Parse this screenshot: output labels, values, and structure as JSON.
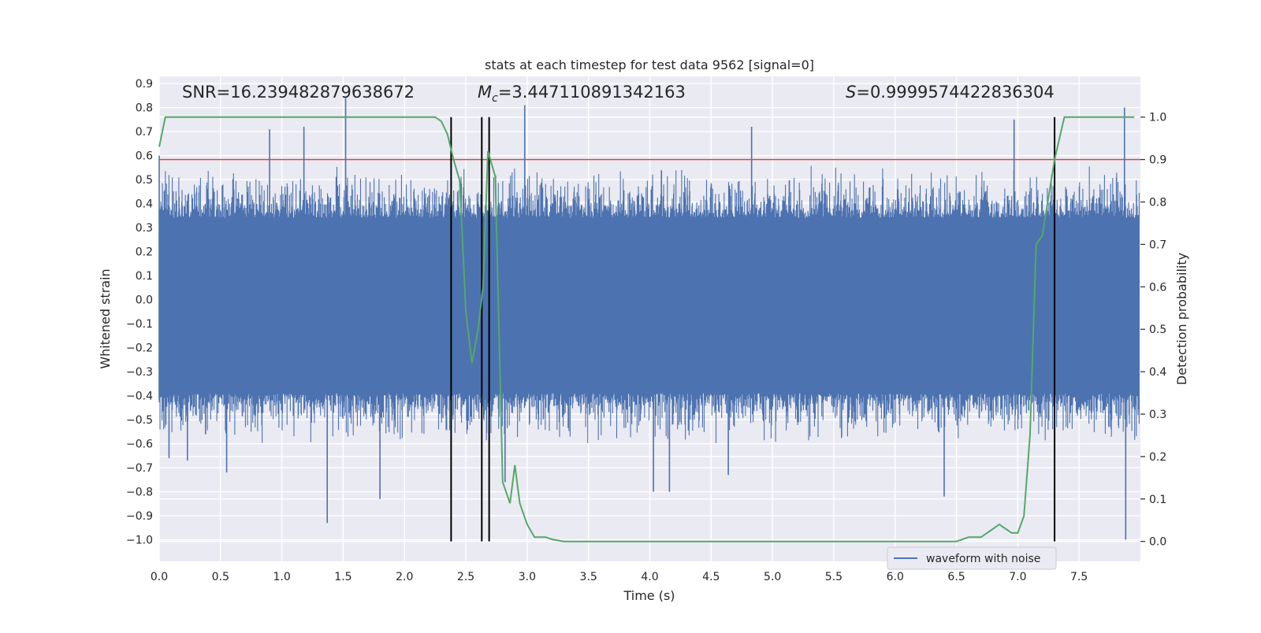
{
  "chart_data": {
    "type": "line",
    "title": "stats at each timestep for test data 9562 [signal=0]",
    "xlabel": "Time (s)",
    "ylabel": "Whitened strain",
    "y2label": "Detection probability",
    "xlim": [
      0.0,
      8.0
    ],
    "ylim": [
      -1.09,
      0.93
    ],
    "y2lim": [
      -0.047,
      1.096
    ],
    "x_ticks": [
      0.0,
      0.5,
      1.0,
      1.5,
      2.0,
      2.5,
      3.0,
      3.5,
      4.0,
      4.5,
      5.0,
      5.5,
      6.0,
      6.5,
      7.0,
      7.5
    ],
    "x_tick_labels": [
      "0.0",
      "0.5",
      "1.0",
      "1.5",
      "2.0",
      "2.5",
      "3.0",
      "3.5",
      "4.0",
      "4.5",
      "5.0",
      "5.5",
      "6.0",
      "6.5",
      "7.0",
      "7.5"
    ],
    "y_ticks": [
      0.9,
      0.8,
      0.7,
      0.6,
      0.5,
      0.4,
      0.3,
      0.2,
      0.1,
      0.0,
      -0.1,
      -0.2,
      -0.3,
      -0.4,
      -0.5,
      -0.6,
      -0.7,
      -0.8,
      -0.9,
      -1.0
    ],
    "y_tick_labels": [
      "0.9",
      "0.8",
      "0.7",
      "0.6",
      "0.5",
      "0.4",
      "0.3",
      "0.2",
      "0.1",
      "0.0",
      "−0.1",
      "−0.2",
      "−0.3",
      "−0.4",
      "−0.5",
      "−0.6",
      "−0.7",
      "−0.8",
      "−0.9",
      "−1.0"
    ],
    "y2_ticks": [
      1.0,
      0.9,
      0.8,
      0.7,
      0.6,
      0.5,
      0.4,
      0.3,
      0.2,
      0.1,
      0.0
    ],
    "y2_tick_labels": [
      "1.0",
      "0.9",
      "0.8",
      "0.7",
      "0.6",
      "0.5",
      "0.4",
      "0.3",
      "0.2",
      "0.1",
      "0.0"
    ],
    "annotations": {
      "snr": "SNR=16.239482879638672",
      "mc_prefix": "M",
      "mc_sub": "c",
      "mc_value": "=3.447110891342163",
      "s_prefix": "S",
      "s_value": "=0.9999574422836304"
    },
    "threshold_y2": 0.9,
    "vertical_lines_x": [
      2.38,
      2.63,
      2.69,
      7.3
    ],
    "vertical_lines_y2_range": [
      0.0,
      1.0
    ],
    "legend": {
      "label": "waveform with noise",
      "placement": "lower-right"
    },
    "colors": {
      "waveform": "#4c72b0",
      "probability": "#55a868",
      "threshold": "#c44e52",
      "markers": "#000000",
      "plot_bg": "#eaeaf2",
      "grid": "#ffffff"
    },
    "series": [
      {
        "name": "waveform with noise",
        "axis": "left",
        "style": "dense-noise",
        "envelope_upper_typical": 0.32,
        "envelope_lower_typical": -0.37,
        "spikes": [
          {
            "x": 0.0,
            "y": 0.6
          },
          {
            "x": 0.9,
            "y": 0.71
          },
          {
            "x": 1.18,
            "y": 0.72
          },
          {
            "x": 1.52,
            "y": 0.84
          },
          {
            "x": 2.98,
            "y": 0.81
          },
          {
            "x": 4.83,
            "y": 0.72
          },
          {
            "x": 6.97,
            "y": 0.75
          },
          {
            "x": 7.87,
            "y": 0.8
          },
          {
            "x": 0.0,
            "y": -0.41
          },
          {
            "x": 0.08,
            "y": -0.66
          },
          {
            "x": 0.23,
            "y": -0.67
          },
          {
            "x": 0.55,
            "y": -0.72
          },
          {
            "x": 1.37,
            "y": -0.93
          },
          {
            "x": 1.8,
            "y": -0.83
          },
          {
            "x": 2.82,
            "y": -0.76
          },
          {
            "x": 4.03,
            "y": -0.8
          },
          {
            "x": 4.16,
            "y": -0.8
          },
          {
            "x": 4.64,
            "y": -0.73
          },
          {
            "x": 6.4,
            "y": -0.82
          },
          {
            "x": 7.88,
            "y": -1.0
          }
        ]
      },
      {
        "name": "detection probability",
        "axis": "right",
        "x": [
          0.0,
          0.05,
          0.2,
          0.5,
          1.0,
          1.5,
          2.0,
          2.25,
          2.3,
          2.35,
          2.4,
          2.45,
          2.5,
          2.55,
          2.6,
          2.64,
          2.68,
          2.74,
          2.8,
          2.86,
          2.9,
          2.94,
          3.0,
          3.06,
          3.15,
          3.2,
          3.3,
          3.5,
          3.8,
          4.0,
          4.5,
          5.0,
          5.5,
          6.0,
          6.5,
          6.6,
          6.7,
          6.8,
          6.85,
          6.9,
          6.95,
          7.0,
          7.05,
          7.1,
          7.15,
          7.2,
          7.3,
          7.38,
          7.45,
          7.6,
          7.8,
          7.95
        ],
        "y": [
          0.93,
          1.0,
          1.0,
          1.0,
          1.0,
          1.0,
          1.0,
          1.0,
          0.99,
          0.96,
          0.9,
          0.85,
          0.54,
          0.42,
          0.5,
          0.6,
          0.92,
          0.86,
          0.14,
          0.09,
          0.18,
          0.09,
          0.04,
          0.01,
          0.01,
          0.005,
          0.0,
          0.0,
          0.0,
          0.0,
          0.0,
          0.0,
          0.0,
          0.0,
          0.0,
          0.01,
          0.01,
          0.03,
          0.04,
          0.03,
          0.02,
          0.02,
          0.06,
          0.25,
          0.7,
          0.72,
          0.9,
          1.0,
          1.0,
          1.0,
          1.0,
          1.0
        ]
      }
    ]
  }
}
